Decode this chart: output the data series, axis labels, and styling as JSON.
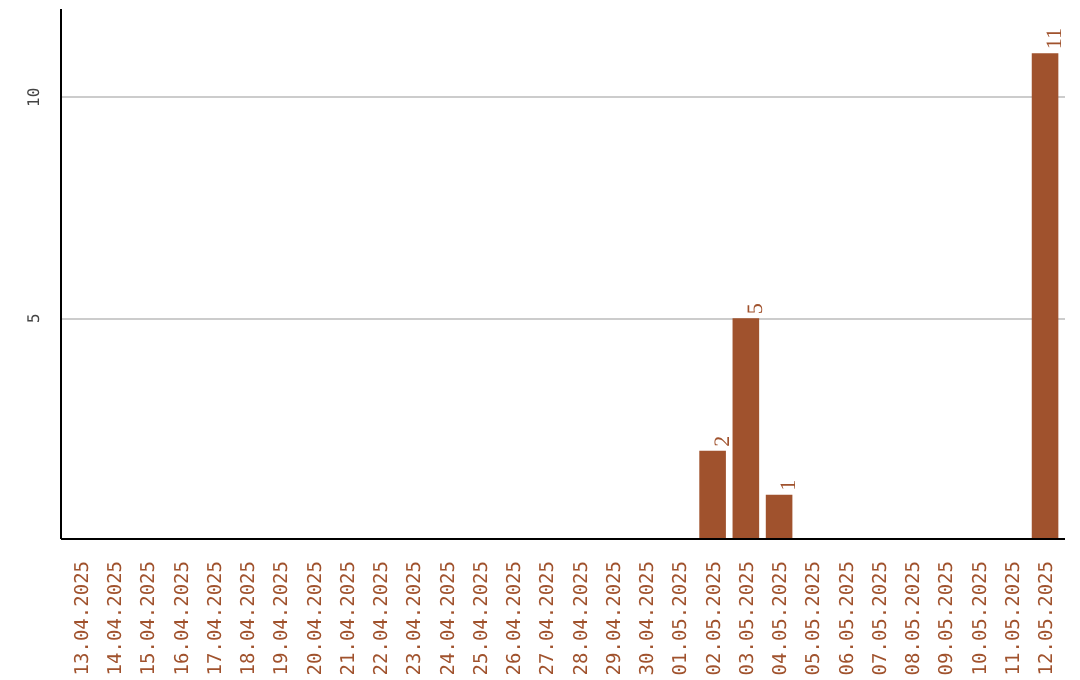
{
  "chart_data": {
    "type": "bar",
    "categories": [
      "13.04.2025",
      "14.04.2025",
      "15.04.2025",
      "16.04.2025",
      "17.04.2025",
      "18.04.2025",
      "19.04.2025",
      "20.04.2025",
      "21.04.2025",
      "22.04.2025",
      "23.04.2025",
      "24.04.2025",
      "25.04.2025",
      "26.04.2025",
      "27.04.2025",
      "28.04.2025",
      "29.04.2025",
      "30.04.2025",
      "01.05.2025",
      "02.05.2025",
      "03.05.2025",
      "04.05.2025",
      "05.05.2025",
      "06.05.2025",
      "07.05.2025",
      "08.05.2025",
      "09.05.2025",
      "10.05.2025",
      "11.05.2025",
      "12.05.2025"
    ],
    "values": [
      0,
      0,
      0,
      0,
      0,
      0,
      0,
      0,
      0,
      0,
      0,
      0,
      0,
      0,
      0,
      0,
      0,
      0,
      0,
      2,
      5,
      1,
      0,
      0,
      0,
      0,
      0,
      0,
      0,
      11
    ],
    "value_labels": [
      null,
      null,
      null,
      null,
      null,
      null,
      null,
      null,
      null,
      null,
      null,
      null,
      null,
      null,
      null,
      null,
      null,
      null,
      null,
      "2",
      "5",
      "1",
      null,
      null,
      null,
      null,
      null,
      null,
      null,
      "11"
    ],
    "color": "#a0522d",
    "ylim": [
      0,
      12
    ],
    "yticks": [
      5,
      10
    ],
    "grid": "y"
  }
}
